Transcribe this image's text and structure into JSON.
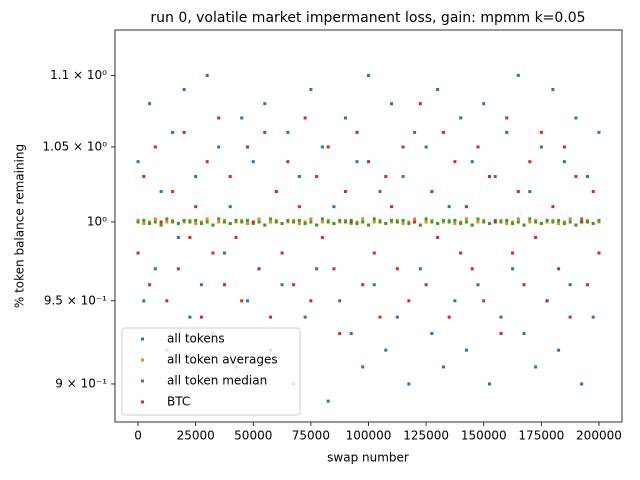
{
  "chart_data": {
    "type": "scatter",
    "title": "run 0, volatile market impermanent loss, gain: mpmm k=0.05",
    "xlabel": "swap number",
    "ylabel": "% token balance remaining",
    "yscale": "log",
    "xlim": [
      -10000,
      210000
    ],
    "ylim": [
      0.878,
      1.133
    ],
    "xticks": [
      0,
      25000,
      50000,
      75000,
      100000,
      125000,
      150000,
      175000,
      200000
    ],
    "yticks": [
      {
        "value": 0.9,
        "label": "9 × 10⁻¹"
      },
      {
        "value": 0.95,
        "label": "9.5 × 10⁻¹"
      },
      {
        "value": 1,
        "label": "10⁰"
      },
      {
        "value": 1.05,
        "label": "1.05 × 10⁰"
      },
      {
        "value": 1.1,
        "label": "1.1 × 10⁰"
      }
    ],
    "legend": "lower left",
    "x": [
      0,
      2500,
      5000,
      7500,
      10000,
      12500,
      15000,
      17500,
      20000,
      22500,
      25000,
      27500,
      30000,
      32500,
      35000,
      37500,
      40000,
      42500,
      45000,
      47500,
      50000,
      52500,
      55000,
      57500,
      60000,
      62500,
      65000,
      67500,
      70000,
      72500,
      75000,
      77500,
      80000,
      82500,
      85000,
      87500,
      90000,
      92500,
      95000,
      97500,
      100000,
      102500,
      105000,
      107500,
      110000,
      112500,
      115000,
      117500,
      120000,
      122500,
      125000,
      127500,
      130000,
      132500,
      135000,
      137500,
      140000,
      142500,
      145000,
      147500,
      150000,
      152500,
      155000,
      157500,
      160000,
      162500,
      165000,
      167500,
      170000,
      172500,
      175000,
      177500,
      180000,
      182500,
      185000,
      187500,
      190000,
      192500,
      195000,
      197500,
      200000
    ],
    "series": [
      {
        "name": "all tokens",
        "color": "#1f77b4",
        "values": [
          1.04,
          0.95,
          1.08,
          0.97,
          1.02,
          0.92,
          1.06,
          0.99,
          1.09,
          0.94,
          1.03,
          0.96,
          1.1,
          0.93,
          1.05,
          0.98,
          1.01,
          0.91,
          1.07,
          0.95,
          1.04,
          0.97,
          1.08,
          0.92,
          1.02,
          0.96,
          1.06,
          0.9,
          1.03,
          0.94,
          1.09,
          0.97,
          1.05,
          0.89,
          1.01,
          0.95,
          1.07,
          0.93,
          1.04,
          0.91,
          1.1,
          0.96,
          1.02,
          0.92,
          1.08,
          0.94,
          1.03,
          0.9,
          1.06,
          0.97,
          1.05,
          0.93,
          1.09,
          0.91,
          1.01,
          0.95,
          1.07,
          0.92,
          1.04,
          0.96,
          1.08,
          0.9,
          1.03,
          0.94,
          1.06,
          0.97,
          1.1,
          0.93,
          1.02,
          0.91,
          1.05,
          0.95,
          1.09,
          0.92,
          1.04,
          0.96,
          1.07,
          0.9,
          1.03,
          0.94,
          1.06
        ]
      },
      {
        "name": "all token averages",
        "color": "#ff7f0e",
        "values": [
          1.001,
          0.999,
          1.0,
          1.002,
          0.998,
          1.0,
          1.001,
          0.999,
          1.0,
          1.001,
          0.999,
          1.0,
          1.002,
          0.998,
          1.0,
          1.001,
          0.999,
          1.0,
          1.001,
          0.999,
          1.0,
          1.002,
          0.998,
          1.0,
          1.001,
          0.999,
          1.0,
          1.001,
          0.999,
          1.0,
          1.002,
          0.998,
          1.0,
          1.001,
          0.999,
          1.0,
          1.001,
          0.999,
          1.0,
          1.002,
          0.998,
          1.0,
          1.001,
          0.999,
          1.0,
          1.001,
          0.999,
          1.0,
          1.002,
          0.998,
          1.0,
          1.001,
          0.999,
          1.0,
          1.001,
          0.999,
          1.0,
          1.002,
          0.998,
          1.0,
          1.001,
          0.999,
          1.0,
          1.001,
          0.999,
          1.0,
          1.002,
          0.998,
          1.0,
          1.001,
          0.999,
          1.0,
          1.001,
          0.999,
          1.0,
          1.002,
          0.998,
          1.0,
          1.001,
          0.999,
          1.0
        ]
      },
      {
        "name": "all token median",
        "color": "#2ca02c",
        "values": [
          1.0,
          1.001,
          0.999,
          1.0,
          0.998,
          1.002,
          1.0,
          0.999,
          1.001,
          1.0,
          1.001,
          0.999,
          1.0,
          0.998,
          1.002,
          1.0,
          0.999,
          1.001,
          1.0,
          1.001,
          0.999,
          1.0,
          0.998,
          1.002,
          1.0,
          0.999,
          1.001,
          1.0,
          1.001,
          0.999,
          1.0,
          0.998,
          1.002,
          1.0,
          0.999,
          1.001,
          1.0,
          1.001,
          0.999,
          1.0,
          0.998,
          1.002,
          1.0,
          0.999,
          1.001,
          1.0,
          1.001,
          0.999,
          1.0,
          0.998,
          1.002,
          1.0,
          0.999,
          1.001,
          1.0,
          1.001,
          0.999,
          1.0,
          0.998,
          1.002,
          1.0,
          0.999,
          1.001,
          1.0,
          1.001,
          0.999,
          1.0,
          0.998,
          1.002,
          1.0,
          0.999,
          1.001,
          1.0,
          1.001,
          0.999,
          1.0,
          0.998,
          1.002,
          1.0,
          0.999,
          1.001
        ]
      },
      {
        "name": "BTC",
        "color": "#d62728",
        "values": [
          0.98,
          1.03,
          0.96,
          1.05,
          1.0,
          0.95,
          1.02,
          0.97,
          1.06,
          0.99,
          1.01,
          0.94,
          1.04,
          0.98,
          1.07,
          0.96,
          1.03,
          0.99,
          0.95,
          1.05,
          1.0,
          0.97,
          1.06,
          0.94,
          1.02,
          0.98,
          1.04,
          0.96,
          1.01,
          1.07,
          0.95,
          1.03,
          0.99,
          1.05,
          0.97,
          0.93,
          1.02,
          1.0,
          1.06,
          0.96,
          1.04,
          0.98,
          0.94,
          1.03,
          1.01,
          0.97,
          1.05,
          0.95,
          1.0,
          1.08,
          0.96,
          1.02,
          0.99,
          1.06,
          0.94,
          1.04,
          0.98,
          1.01,
          0.97,
          1.05,
          0.95,
          1.03,
          1.0,
          0.93,
          1.07,
          0.98,
          1.02,
          0.96,
          1.04,
          0.99,
          1.06,
          0.95,
          1.01,
          0.97,
          1.05,
          0.94,
          1.03,
          1.0,
          0.96,
          1.02,
          0.98
        ]
      }
    ]
  }
}
